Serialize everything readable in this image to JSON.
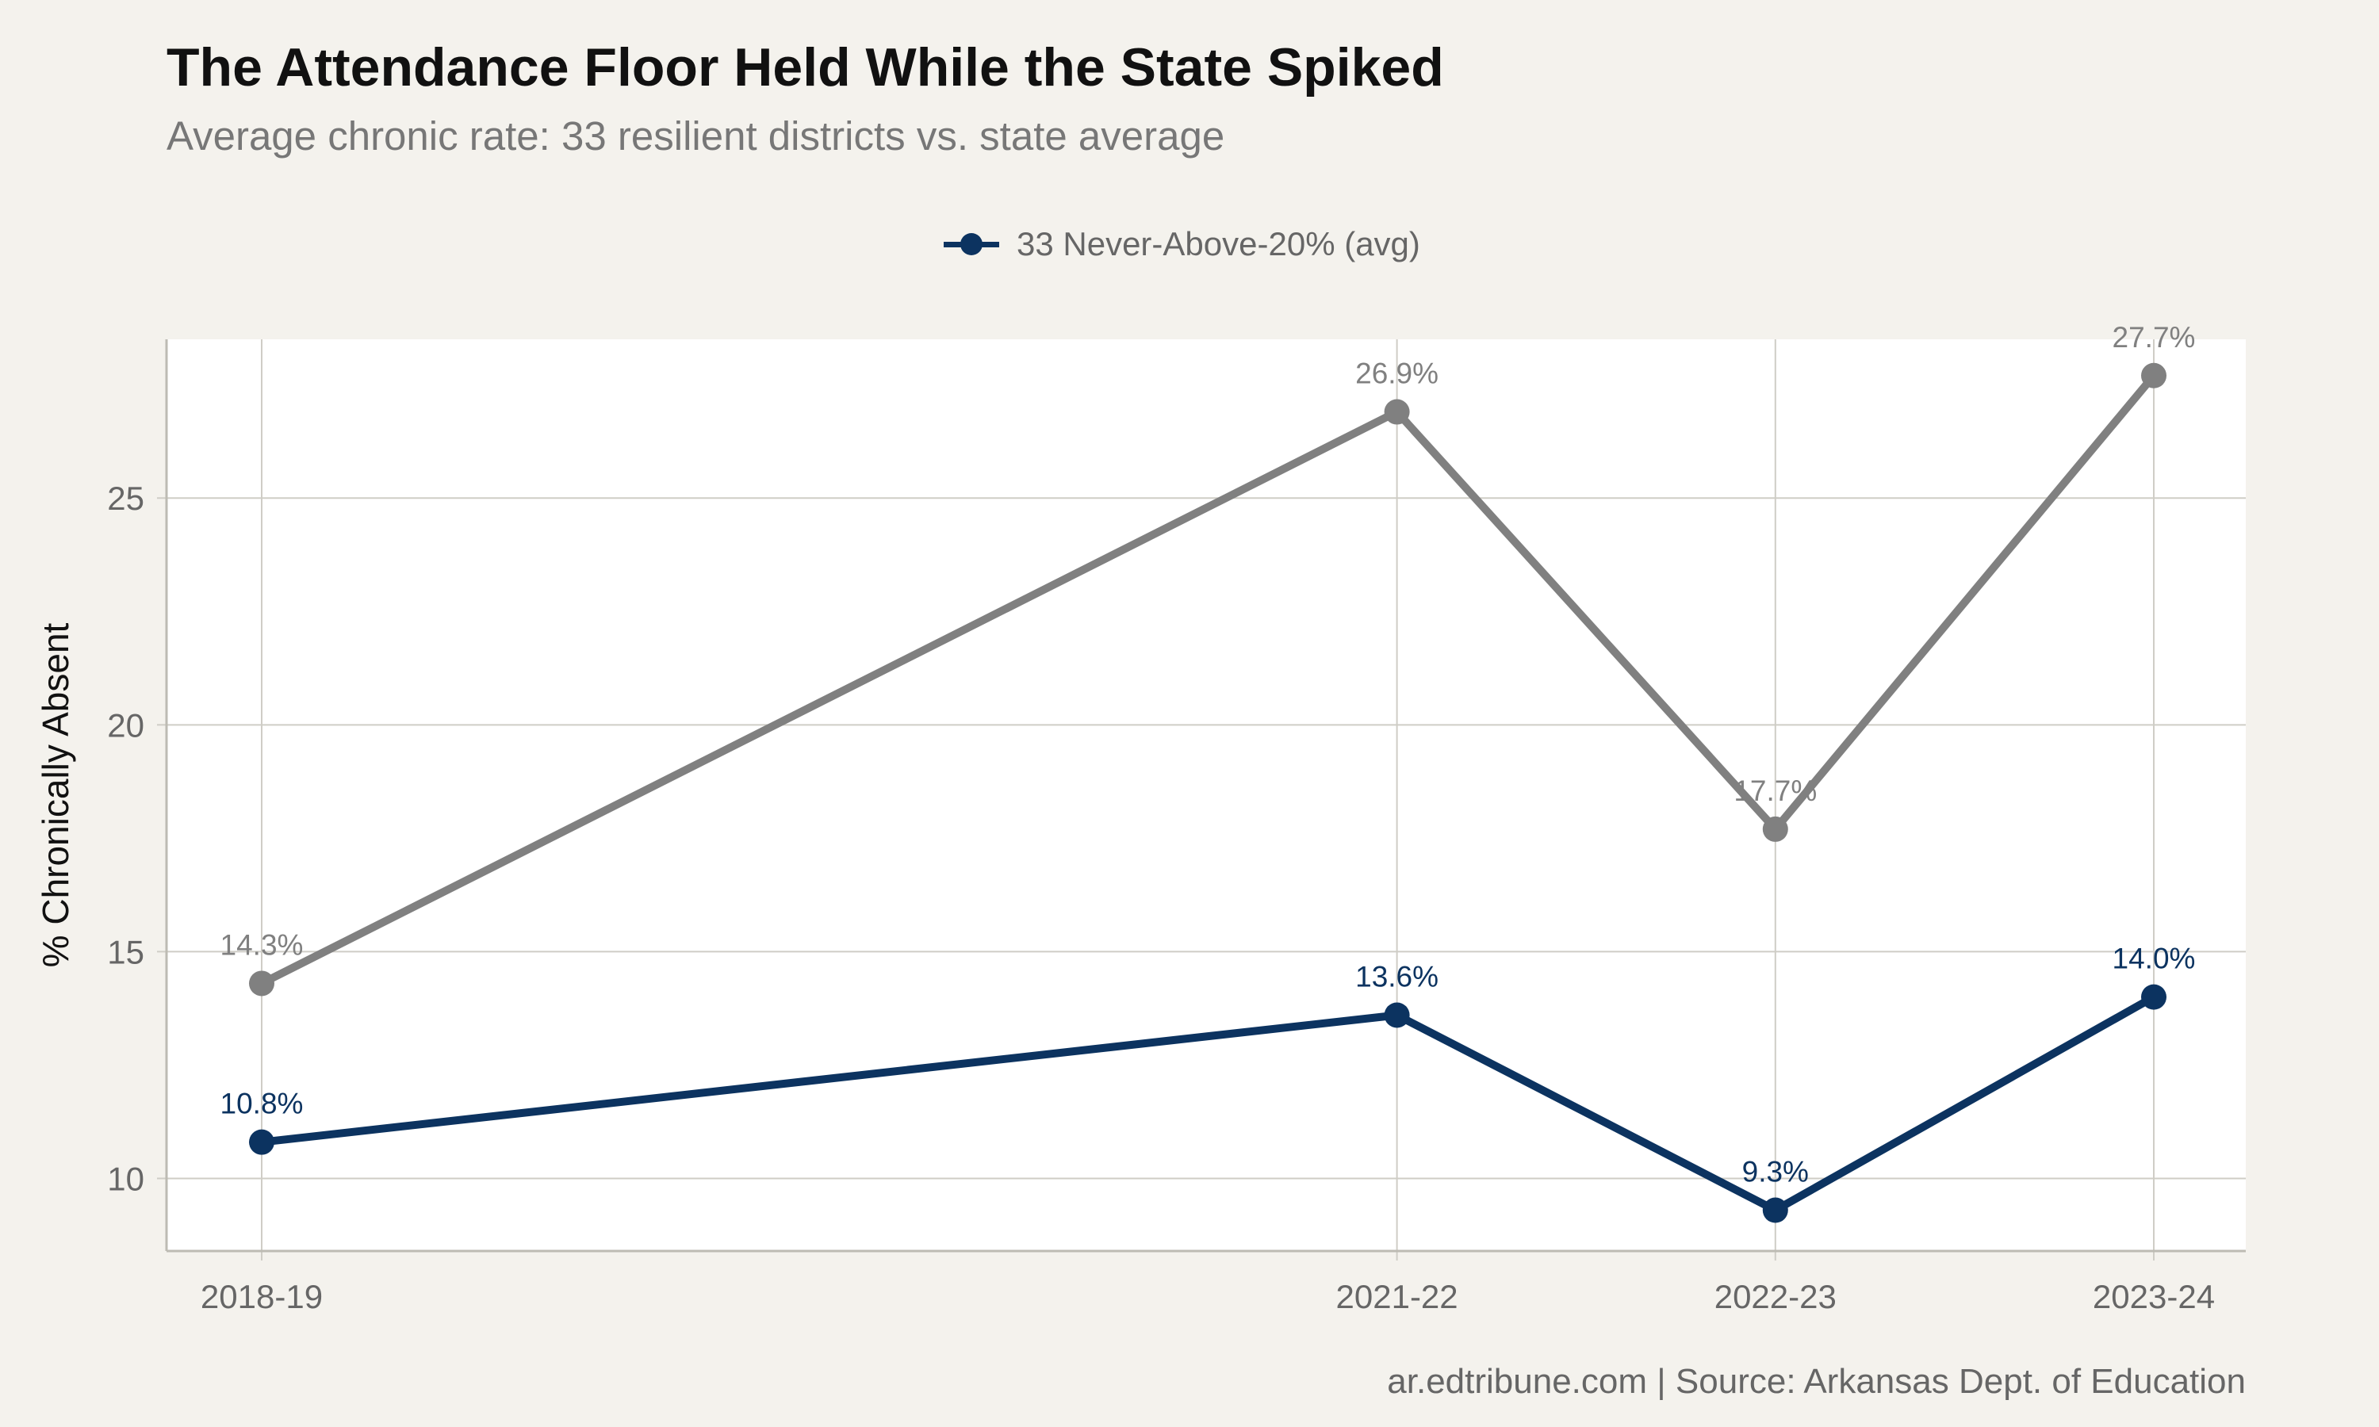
{
  "title": "The Attendance Floor Held While the State Spiked",
  "subtitle": "Average chronic rate: 33 resilient districts vs. state average",
  "caption": "ar.edtribune.com | Source: Arkansas Dept. of Education",
  "legend": {
    "label": "33 Never-Above-20% (avg)",
    "color": "#0c3360"
  },
  "chart_data": {
    "type": "line",
    "categories": [
      "2018-19",
      "2021-22",
      "2022-23",
      "2023-24"
    ],
    "x": [
      2018,
      2021,
      2022,
      2023
    ],
    "ylabel": "% Chronically Absent",
    "xlabel": "",
    "ylim": [
      8.4,
      28.5
    ],
    "yticks": [
      10,
      15,
      20,
      25
    ],
    "grid": true,
    "legend_position": "top",
    "series": [
      {
        "name": "33 Never-Above-20% (avg)",
        "color": "#0c3360",
        "values": [
          10.8,
          13.6,
          9.3,
          14.0
        ],
        "labels": [
          "10.8%",
          "13.6%",
          "9.3%",
          "14.0%"
        ]
      },
      {
        "color": "#808080",
        "values": [
          14.3,
          26.9,
          17.7,
          27.7
        ],
        "labels": [
          "14.3%",
          "26.9%",
          "17.7%",
          "27.7%"
        ]
      }
    ]
  }
}
